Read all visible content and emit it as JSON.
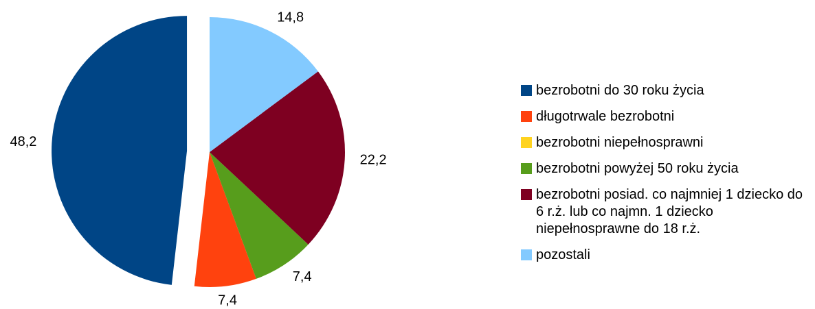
{
  "chart_data": {
    "type": "pie",
    "categories": [
      "bezrobotni do 30 roku życia",
      "długotrwale bezrobotni",
      "bezrobotni niepełnosprawni",
      "bezrobotni powyżej 50 roku życia",
      "bezrobotni posiad. co najmniej 1 dziecko do 6 r.ż. lub co najmn. 1 dziecko niepełnosprawne do 18 r.ż.",
      "pozostali"
    ],
    "values": [
      48.2,
      7.4,
      0,
      7.4,
      22.2,
      14.8
    ],
    "value_labels": [
      "48,2",
      "7,4",
      null,
      "7,4",
      "22,2",
      "14,8"
    ],
    "colors": [
      "#004586",
      "#ff420e",
      "#ffd320",
      "#579d1c",
      "#7e0021",
      "#83caff"
    ],
    "legend": "right"
  }
}
